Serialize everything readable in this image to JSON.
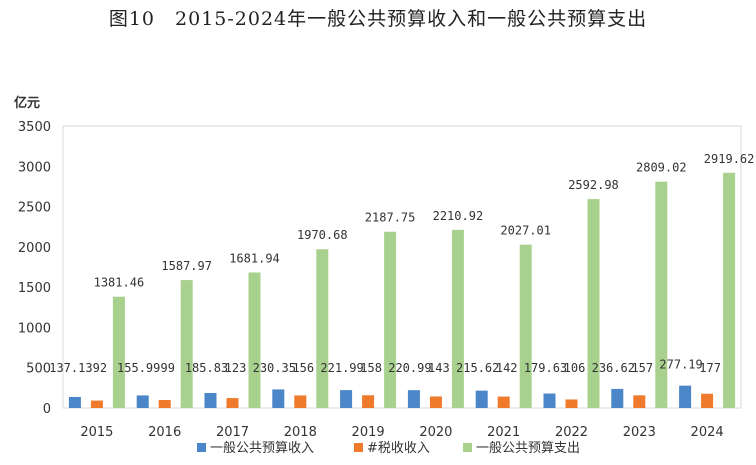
{
  "chart_data": {
    "type": "bar",
    "title": "图10　2015-2024年一般公共预算收入和一般公共预算支出",
    "ylabel": "亿元",
    "xlabel": "",
    "ylim": [
      0,
      3500
    ],
    "yticks": [
      0,
      500,
      1000,
      1500,
      2000,
      2500,
      3000,
      3500
    ],
    "grid": false,
    "legend_position": "bottom",
    "categories": [
      "2015",
      "2016",
      "2017",
      "2018",
      "2019",
      "2020",
      "2021",
      "2022",
      "2023",
      "2024"
    ],
    "series": [
      {
        "name": "一般公共预算收入",
        "color": "#4a86c8",
        "values": [
          137.13,
          155.99,
          185.83,
          230.35,
          221.99,
          220.99,
          215.62,
          179.63,
          236.62,
          277.19
        ],
        "labels": [
          "137.13",
          "155.99",
          "185.83",
          "230.35",
          "221.99",
          "220.99",
          "215.62",
          "179.63",
          "236.62",
          "277.19"
        ]
      },
      {
        "name": "#税收收入",
        "color": "#ef7a2b",
        "values": [
          92,
          99,
          123,
          156,
          158,
          143,
          142,
          106,
          157,
          177
        ],
        "labels": [
          "92",
          "99",
          "123",
          "156",
          "158",
          "143",
          "142",
          "106",
          "157",
          "177"
        ]
      },
      {
        "name": "一般公共预算支出",
        "color": "#a9d18e",
        "values": [
          1381.46,
          1587.97,
          1681.94,
          1970.68,
          2187.75,
          2210.92,
          2027.01,
          2592.98,
          2809.02,
          2919.62
        ],
        "labels": [
          "1381.46",
          "1587.97",
          "1681.94",
          "1970.68",
          "2187.75",
          "2210.92",
          "2027.01",
          "2592.98",
          "2809.02",
          "2919.62"
        ]
      }
    ]
  }
}
